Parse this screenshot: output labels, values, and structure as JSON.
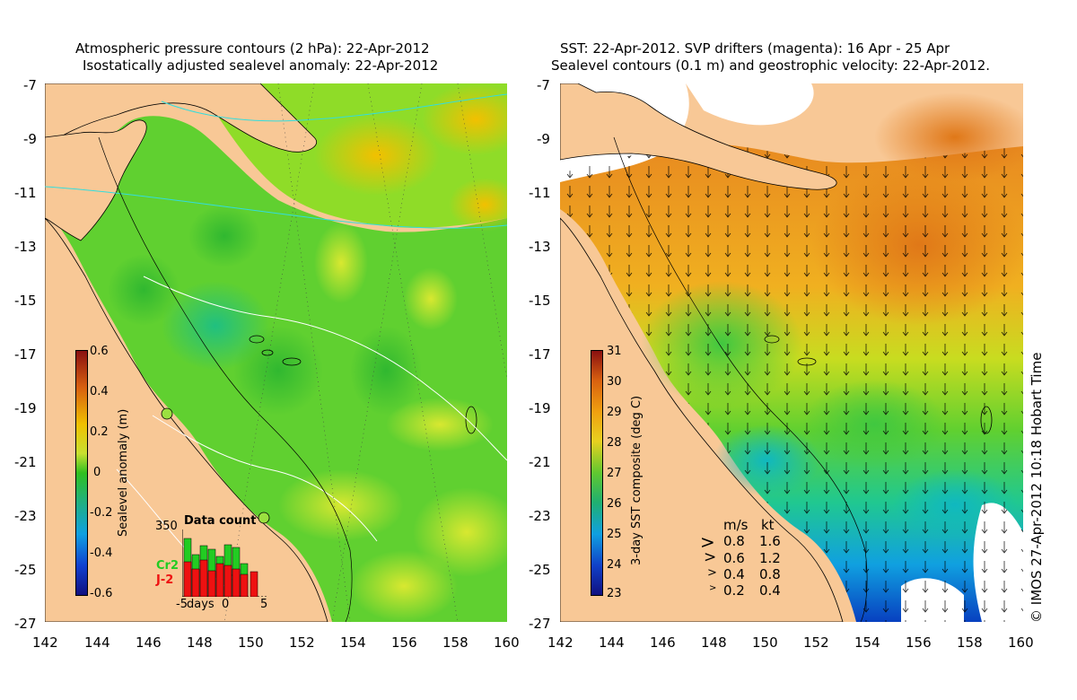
{
  "left_panel": {
    "title_line1": "Atmospheric pressure contours (2 hPa): 22-Apr-2012",
    "title_line2": "Isostatically adjusted sealevel anomaly: 22-Apr-2012",
    "colorbar_label": "Sealevel anomaly (m)",
    "colorbar_ticks": [
      "0.6",
      "0.4",
      "0.2",
      "0",
      "-0.2",
      "-0.4",
      "-0.6"
    ],
    "inset": {
      "title": "Data count",
      "ymax": "350",
      "legend_a": "Cr2",
      "legend_b": "J-2",
      "xlabel_days": "days",
      "xtick_left": "-5",
      "xtick_mid": "0",
      "xtick_right": "5",
      "color_a": "#22cc22",
      "color_b": "#ee1111"
    }
  },
  "right_panel": {
    "title_line1": "SST: 22-Apr-2012. SVP drifters (magenta): 16 Apr - 25 Apr",
    "title_line2": "Sealevel contours (0.1 m) and geostrophic velocity: 22-Apr-2012.",
    "colorbar_label": "3-day SST composite (deg C)",
    "colorbar_ticks": [
      "31",
      "30",
      "29",
      "28",
      "27",
      "26",
      "25",
      "24",
      "23"
    ],
    "velocity_legend": {
      "header_ms": "m/s",
      "header_kt": "kt",
      "rows": [
        {
          "ms": "0.8",
          "kt": "1.6"
        },
        {
          "ms": "0.6",
          "kt": "1.2"
        },
        {
          "ms": "0.4",
          "kt": "0.8"
        },
        {
          "ms": "0.2",
          "kt": "0.4"
        }
      ]
    }
  },
  "axes": {
    "lat_ticks": [
      "-7",
      "-9",
      "-11",
      "-13",
      "-15",
      "-17",
      "-19",
      "-21",
      "-23",
      "-25",
      "-27"
    ],
    "lon_ticks": [
      "142",
      "144",
      "146",
      "148",
      "150",
      "152",
      "154",
      "156",
      "158",
      "160"
    ]
  },
  "credit": "© IMOS 27-Apr-2012 10:18 Hobart Time",
  "colors": {
    "land": "#f8c896",
    "ocean_mid": "#55d02a",
    "ocean_light": "#a8e02a",
    "warm": "#f0b000",
    "sst_hot": "#e89020",
    "sst_cool": "#0080e0"
  }
}
